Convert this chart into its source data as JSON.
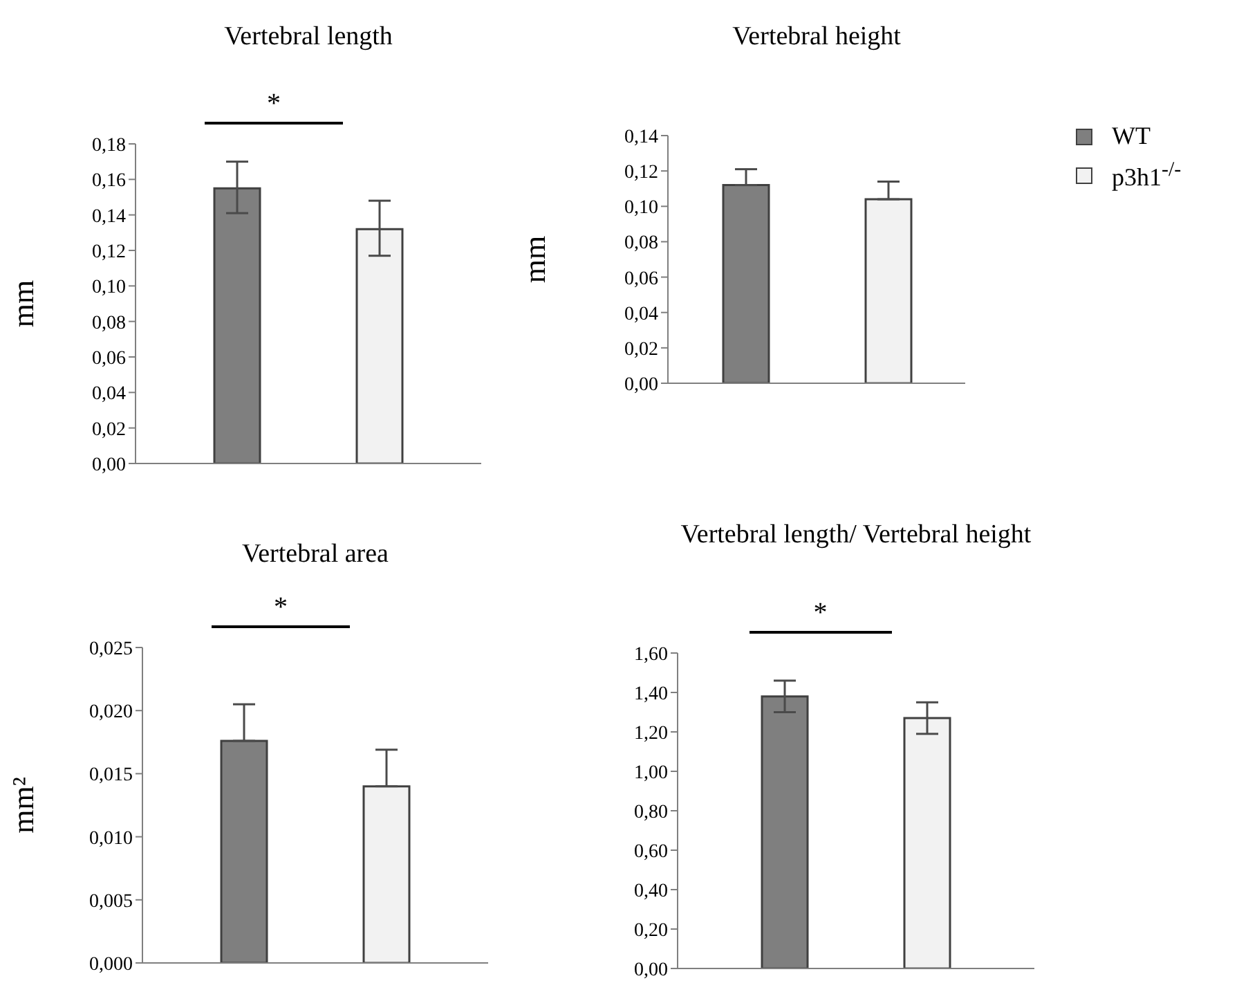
{
  "chart_data": [
    {
      "type": "bar",
      "title": "Vertebral length",
      "ylabel": "mm",
      "categories": [
        null
      ],
      "series": [
        {
          "color": "#7f7f7f",
          "values": [
            0.155
          ],
          "errors": [
            [
              0.141,
              0.17
            ]
          ]
        },
        {
          "color": "#f2f2f2",
          "values": [
            0.132
          ],
          "errors": [
            [
              0.117,
              0.148
            ]
          ]
        }
      ],
      "ylim": [
        0,
        0.18
      ],
      "yticks": [
        {
          "value": 0,
          "label": "0,00"
        },
        {
          "value": 0.02,
          "label": "0,02"
        },
        {
          "value": 0.04,
          "label": "0,04"
        },
        {
          "value": 0.06,
          "label": "0,06"
        },
        {
          "value": 0.08,
          "label": "0,08"
        },
        {
          "value": 0.1,
          "label": "0,10"
        },
        {
          "value": 0.12,
          "label": "0,12"
        },
        {
          "value": 0.14,
          "label": "0,14"
        },
        {
          "value": 0.16,
          "label": "0,16"
        },
        {
          "value": 0.18,
          "label": "0,18"
        }
      ],
      "annotations": [
        "*"
      ],
      "grid": false,
      "legend": false
    },
    {
      "type": "bar",
      "title": "Vertebral height",
      "ylabel": "mm",
      "categories": [
        null
      ],
      "series": [
        {
          "name": "WT",
          "color": "#7f7f7f",
          "values": [
            0.112
          ],
          "errors": [
            [
              0.112,
              0.121
            ]
          ]
        },
        {
          "name": "p3h1$^{-/-}$",
          "color": "#f2f2f2",
          "values": [
            0.104
          ],
          "errors": [
            [
              0.104,
              0.114
            ]
          ]
        }
      ],
      "ylim": [
        0,
        0.14
      ],
      "yticks": [
        {
          "value": 0,
          "label": "0,00"
        },
        {
          "value": 0.02,
          "label": "0,02"
        },
        {
          "value": 0.04,
          "label": "0,04"
        },
        {
          "value": 0.06,
          "label": "0,06"
        },
        {
          "value": 0.08,
          "label": "0,08"
        },
        {
          "value": 0.1,
          "label": "0,10"
        },
        {
          "value": 0.12,
          "label": "0,12"
        },
        {
          "value": 0.14,
          "label": "0,14"
        }
      ],
      "grid": false,
      "legend": "top right"
    },
    {
      "type": "bar",
      "title": "Vertebral area",
      "ylabel": "mm²",
      "categories": [
        null
      ],
      "series": [
        {
          "color": "#7f7f7f",
          "values": [
            0.0176
          ],
          "errors": [
            [
              0.0176,
              0.0205
            ]
          ]
        },
        {
          "color": "#f2f2f2",
          "values": [
            0.014
          ],
          "errors": [
            [
              0.014,
              0.0169
            ]
          ]
        }
      ],
      "ylim": [
        0,
        0.025
      ],
      "yticks": [
        {
          "value": 0,
          "label": "0,000"
        },
        {
          "value": 0.005,
          "label": "0,005"
        },
        {
          "value": 0.01,
          "label": "0,010"
        },
        {
          "value": 0.015,
          "label": "0,015"
        },
        {
          "value": 0.02,
          "label": "0,020"
        },
        {
          "value": 0.025,
          "label": "0,025"
        }
      ],
      "annotations": [
        "*"
      ],
      "grid": false,
      "legend": false
    },
    {
      "type": "bar",
      "title": "Vertebral length/ Vertebral height",
      "categories": [
        null
      ],
      "series": [
        {
          "color": "#7f7f7f",
          "values": [
            1.38
          ],
          "errors": [
            [
              1.3,
              1.46
            ]
          ]
        },
        {
          "color": "#f2f2f2",
          "values": [
            1.27
          ],
          "errors": [
            [
              1.19,
              1.35
            ]
          ]
        }
      ],
      "ylim": [
        0,
        1.6
      ],
      "yticks": [
        {
          "value": 0,
          "label": "0,00"
        },
        {
          "value": 0.2,
          "label": "0,20"
        },
        {
          "value": 0.4,
          "label": "0,40"
        },
        {
          "value": 0.6,
          "label": "0,60"
        },
        {
          "value": 0.8,
          "label": "0,80"
        },
        {
          "value": 1.0,
          "label": "1,00"
        },
        {
          "value": 1.2,
          "label": "1,20"
        },
        {
          "value": 1.4,
          "label": "1,40"
        },
        {
          "value": 1.6,
          "label": "1,60"
        }
      ],
      "annotations": [
        "*"
      ],
      "grid": false,
      "legend": false
    }
  ]
}
